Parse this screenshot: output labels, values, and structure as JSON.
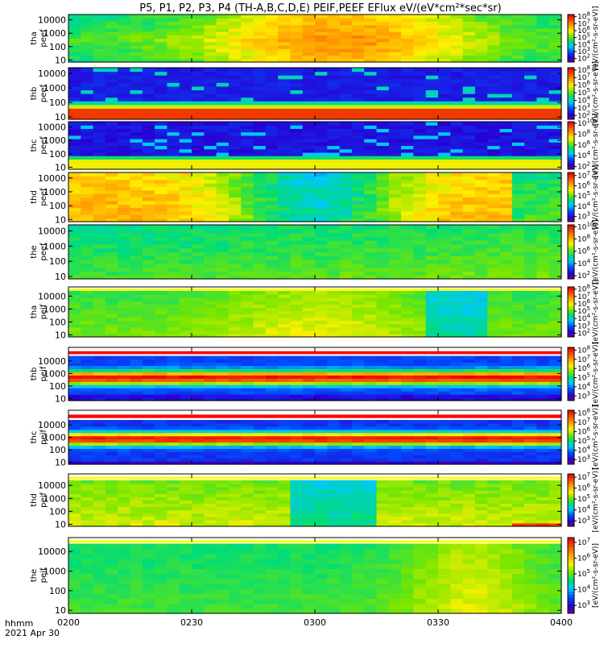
{
  "title": "P5, P1, P2, P3, P4 (TH-A,B,C,D,E) PEIF,PEEF EFlux eV/(eV*cm²*sec*sr)",
  "footer": {
    "label": "hhmm",
    "date": "2021 Apr 30"
  },
  "x_ticks": [
    "0200",
    "0230",
    "0300",
    "0330",
    "0400"
  ],
  "y_ticks": [
    "10",
    "100",
    "1000",
    "10000"
  ],
  "colorbar_unit": "[eV/(cm²-s-sr-eV)]",
  "chart_data": {
    "type": "heatmap",
    "xlabel": "hhmm",
    "x_range": [
      "0200",
      "0400"
    ],
    "y_scale": "log",
    "panels": [
      {
        "label1": "tha",
        "label2": "peef",
        "y_range": [
          7,
          25000
        ],
        "cbar_exps": [
          2,
          3,
          4,
          5,
          6,
          7,
          8
        ],
        "cbar_range": [
          1.5,
          8.3
        ]
      },
      {
        "label1": "thb",
        "label2": "peef",
        "y_range": [
          7,
          25000
        ],
        "cbar_exps": [
          2,
          3,
          4,
          5,
          6,
          7,
          8
        ],
        "cbar_range": [
          1.5,
          8.3
        ]
      },
      {
        "label1": "thc",
        "label2": "peef",
        "y_range": [
          7,
          25000
        ],
        "cbar_exps": [
          2,
          4,
          6,
          8,
          10
        ],
        "cbar_range": [
          1.5,
          10.3
        ]
      },
      {
        "label1": "thd",
        "label2": "peef",
        "y_range": [
          7,
          25000
        ],
        "cbar_exps": [
          3,
          4,
          5,
          6,
          7
        ],
        "cbar_range": [
          2.5,
          7.3
        ]
      },
      {
        "label1": "the",
        "label2": "peef",
        "y_range": [
          7,
          25000
        ],
        "cbar_exps": [
          2,
          4,
          6,
          8,
          10
        ],
        "cbar_range": [
          1.5,
          10.3
        ]
      },
      {
        "label1": "tha",
        "label2": "peif",
        "y_range": [
          7,
          25000
        ],
        "cbar_exps": [
          2,
          3,
          4,
          5,
          6,
          7,
          8
        ],
        "cbar_range": [
          1.5,
          8.3
        ]
      },
      {
        "label1": "thb",
        "label2": "peif",
        "y_range": [
          7,
          25000
        ],
        "cbar_exps": [
          3,
          4,
          5,
          6,
          7,
          8
        ],
        "cbar_range": [
          2.5,
          8.3
        ]
      },
      {
        "label1": "thc",
        "label2": "peif",
        "y_range": [
          7,
          25000
        ],
        "cbar_exps": [
          3,
          4,
          5,
          6,
          7,
          8
        ],
        "cbar_range": [
          2.5,
          8.3
        ]
      },
      {
        "label1": "thd",
        "label2": "peif",
        "y_range": [
          7,
          25000
        ],
        "cbar_exps": [
          3,
          4,
          5,
          6,
          7
        ],
        "cbar_range": [
          2.5,
          7.3
        ]
      },
      {
        "label1": "the",
        "label2": "peif",
        "y_range": [
          7,
          25000
        ],
        "cbar_exps": [
          3,
          4,
          5,
          6,
          7
        ],
        "cbar_range": [
          2.5,
          7.3
        ]
      }
    ]
  }
}
